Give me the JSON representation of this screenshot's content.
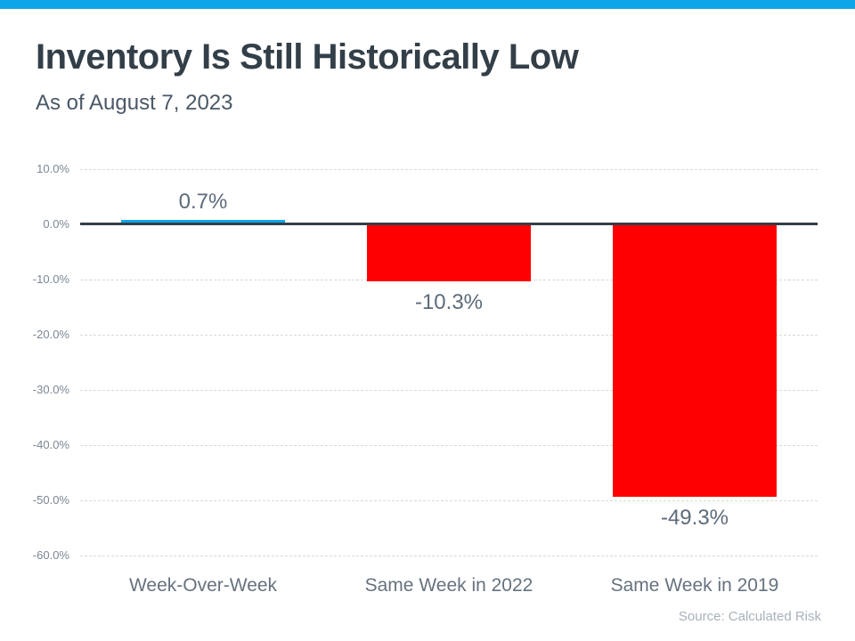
{
  "page": {
    "accent_color": "#0fa6e8",
    "title": "Inventory Is Still Historically Low",
    "subtitle": "As of August 7, 2023",
    "source": "Source: Calculated Risk"
  },
  "chart_data": {
    "type": "bar",
    "title": "Inventory Is Still Historically Low",
    "subtitle": "As of August 7, 2023",
    "categories": [
      "Week-Over-Week",
      "Same Week in 2022",
      "Same Week in 2019"
    ],
    "values": [
      0.7,
      -10.3,
      -49.3
    ],
    "value_labels": [
      "0.7%",
      "-10.3%",
      "-49.3%"
    ],
    "bar_colors": [
      "#0fa6e8",
      "#ff0000",
      "#ff0000"
    ],
    "xlabel": "",
    "ylabel": "",
    "ylim": [
      -60,
      10
    ],
    "yticks": [
      {
        "value": 10,
        "label": "10.0%"
      },
      {
        "value": 0,
        "label": "0.0%"
      },
      {
        "value": -10,
        "label": "-10.0%"
      },
      {
        "value": -20,
        "label": "-20.0%"
      },
      {
        "value": -30,
        "label": "-30.0%"
      },
      {
        "value": -40,
        "label": "-40.0%"
      },
      {
        "value": -50,
        "label": "-50.0%"
      },
      {
        "value": -60,
        "label": "-60.0%"
      }
    ],
    "grid": true,
    "gridline_style": "dashed",
    "legend": false,
    "source": "Source: Calculated Risk",
    "colors": {
      "axis_line": "#333f48",
      "gridline": "#d9d9d9",
      "tick_label": "#7b8794",
      "data_label": "#5d6b79",
      "category_label": "#66727f"
    }
  }
}
